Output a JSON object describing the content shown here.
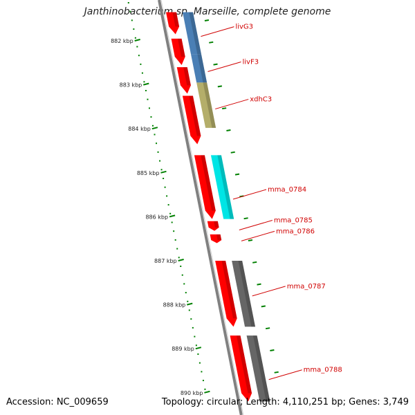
{
  "title": "Janthinobacterium sp. Marseille, complete genome",
  "footer": {
    "accession": "Accession: NC_009659",
    "topology": "Topology: circular; Length: 4,110,251 bp; Genes: 3,749"
  },
  "map": {
    "axis_unit": "kbp",
    "ticks_kbp": [
      882,
      883,
      884,
      885,
      886,
      887,
      888,
      889,
      890
    ],
    "colors": {
      "backbone": "#808080",
      "cds_red": "#ff0000",
      "livG3": "#4a7fb5",
      "livF3": "#4a7fb5",
      "xdhC3": "#b4ae6a",
      "mma_0784": "#00e5e5",
      "mma_0787": "#666666",
      "mma_0788": "#666666",
      "label": "#d00000",
      "ticks": "#008000"
    },
    "genes": [
      {
        "label": "livG3",
        "start_kbp": 881.35,
        "end_kbp": 882.3,
        "color_key": "livG3",
        "label_kbp": 881.9
      },
      {
        "label": "livF3",
        "start_kbp": 882.3,
        "end_kbp": 882.95,
        "color_key": "livF3",
        "label_kbp": 882.7
      },
      {
        "label": "xdhC3",
        "start_kbp": 882.95,
        "end_kbp": 883.98,
        "color_key": "xdhC3",
        "label_kbp": 883.55
      },
      {
        "label": "mma_0784",
        "start_kbp": 884.6,
        "end_kbp": 886.05,
        "color_key": "mma_0784",
        "label_kbp": 885.6
      },
      {
        "label": "mma_0785",
        "start_kbp": 886.1,
        "end_kbp": 886.32,
        "color_key": null,
        "label_kbp": 886.3
      },
      {
        "label": "mma_0786",
        "start_kbp": 886.4,
        "end_kbp": 886.6,
        "color_key": null,
        "label_kbp": 886.55
      },
      {
        "label": "mma_0787",
        "start_kbp": 887.0,
        "end_kbp": 888.5,
        "color_key": "mma_0787",
        "label_kbp": 887.8
      },
      {
        "label": "mma_0788",
        "start_kbp": 888.7,
        "end_kbp": 890.2,
        "color_key": "mma_0788",
        "label_kbp": 889.7
      }
    ],
    "red_cds_kbp": [
      [
        881.35,
        881.85
      ],
      [
        881.95,
        882.55
      ],
      [
        882.6,
        883.2
      ],
      [
        883.25,
        884.35
      ],
      [
        884.6,
        886.05
      ],
      [
        886.1,
        886.32
      ],
      [
        886.4,
        886.6
      ],
      [
        887.0,
        888.5
      ],
      [
        888.7,
        890.2
      ]
    ]
  }
}
